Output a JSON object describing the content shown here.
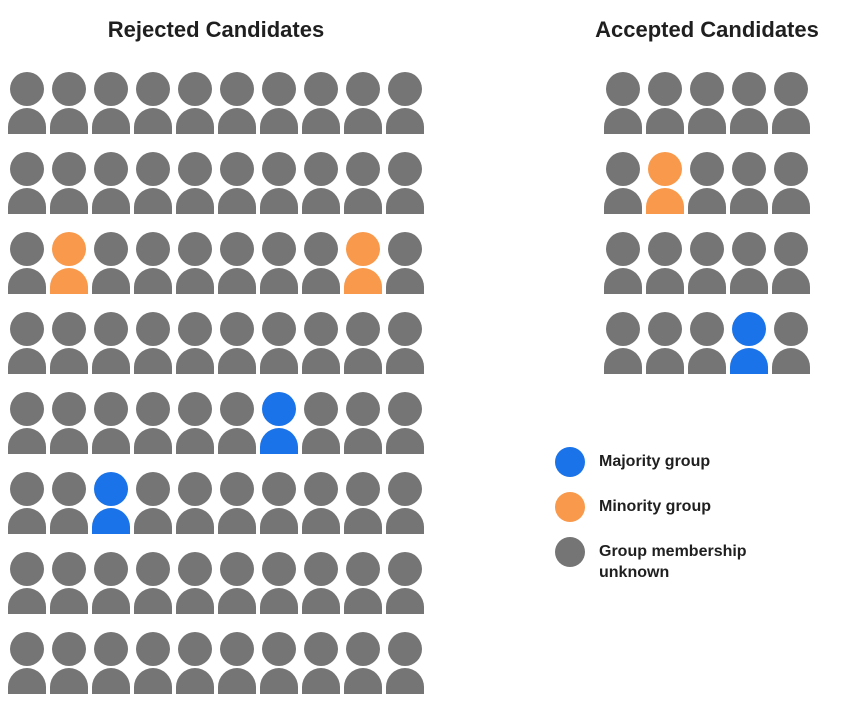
{
  "colors": {
    "majority": "#1a73e8",
    "minority": "#f9994c",
    "unknown": "#757575"
  },
  "person_type_map": {
    "g": "unknown",
    "o": "minority",
    "b": "majority"
  },
  "rejected": {
    "title": "Rejected Candidates",
    "grid": [
      "gggggggggg",
      "gggggggggg",
      "goggggggog",
      "gggggggggg",
      "ggggggbggg",
      "ggbggggggg",
      "gggggggggg",
      "gggggggggg"
    ]
  },
  "accepted": {
    "title": "Accepted Candidates",
    "grid": [
      "ggggg",
      "goggg",
      "ggggg",
      "gggbg"
    ]
  },
  "legend": {
    "items": [
      {
        "type": "majority",
        "label": "Majority group"
      },
      {
        "type": "minority",
        "label": "Minority group"
      },
      {
        "type": "unknown",
        "label": "Group membership unknown"
      }
    ]
  },
  "chart_data": [
    {
      "type": "pictogram",
      "title": "Rejected Candidates",
      "rows": 8,
      "cols": 10,
      "total_people": 80,
      "counts": {
        "majority_group": 2,
        "minority_group": 2,
        "unknown": 76
      },
      "colored_positions_row_col": {
        "minority_group": [
          [
            2,
            1
          ],
          [
            2,
            8
          ]
        ],
        "majority_group": [
          [
            4,
            6
          ],
          [
            5,
            2
          ]
        ]
      }
    },
    {
      "type": "pictogram",
      "title": "Accepted Candidates",
      "rows": 4,
      "cols": 5,
      "total_people": 20,
      "counts": {
        "majority_group": 1,
        "minority_group": 1,
        "unknown": 18
      },
      "colored_positions_row_col": {
        "minority_group": [
          [
            1,
            1
          ]
        ],
        "majority_group": [
          [
            3,
            3
          ]
        ]
      }
    }
  ]
}
